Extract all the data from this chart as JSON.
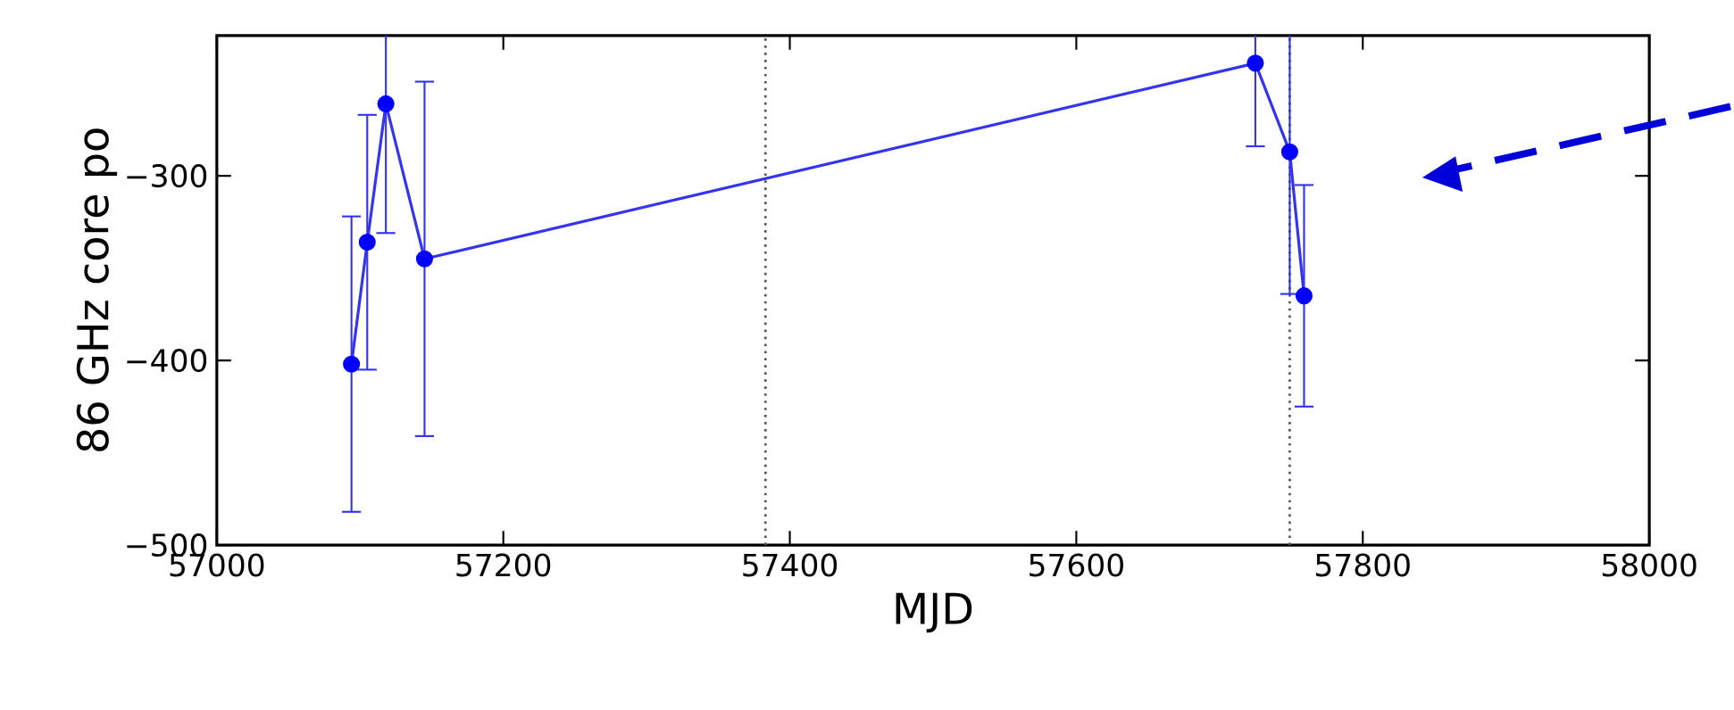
{
  "chart_data": {
    "type": "line",
    "xlabel": "MJD",
    "ylabel": "86 GHz core po",
    "x": [
      57094,
      57105,
      57118,
      57145,
      57725,
      57749,
      57759
    ],
    "series": [
      {
        "color": "#3434f0",
        "values": [
          -402,
          -336,
          -261,
          -345,
          -239,
          -287,
          -365
        ],
        "errors": [
          80,
          69,
          70,
          96,
          45,
          77,
          60
        ]
      }
    ],
    "marker": "circle",
    "line_style": "solid",
    "xlim": [
      57000,
      58000
    ],
    "ylim": [
      -500,
      -224
    ],
    "xticks": [
      57000,
      57200,
      57400,
      57600,
      57800,
      58000
    ],
    "yticks": [
      {
        "value": -500,
        "label": "−500"
      },
      {
        "value": -400,
        "label": "−400"
      },
      {
        "value": -300,
        "label": "−300"
      }
    ],
    "ref_lines": [
      {
        "axis": "x",
        "value": 57383,
        "color": "#555555",
        "line_style": "dotted"
      },
      {
        "axis": "x",
        "value": 57749,
        "color": "#555555",
        "line_style": "dotted"
      }
    ]
  }
}
